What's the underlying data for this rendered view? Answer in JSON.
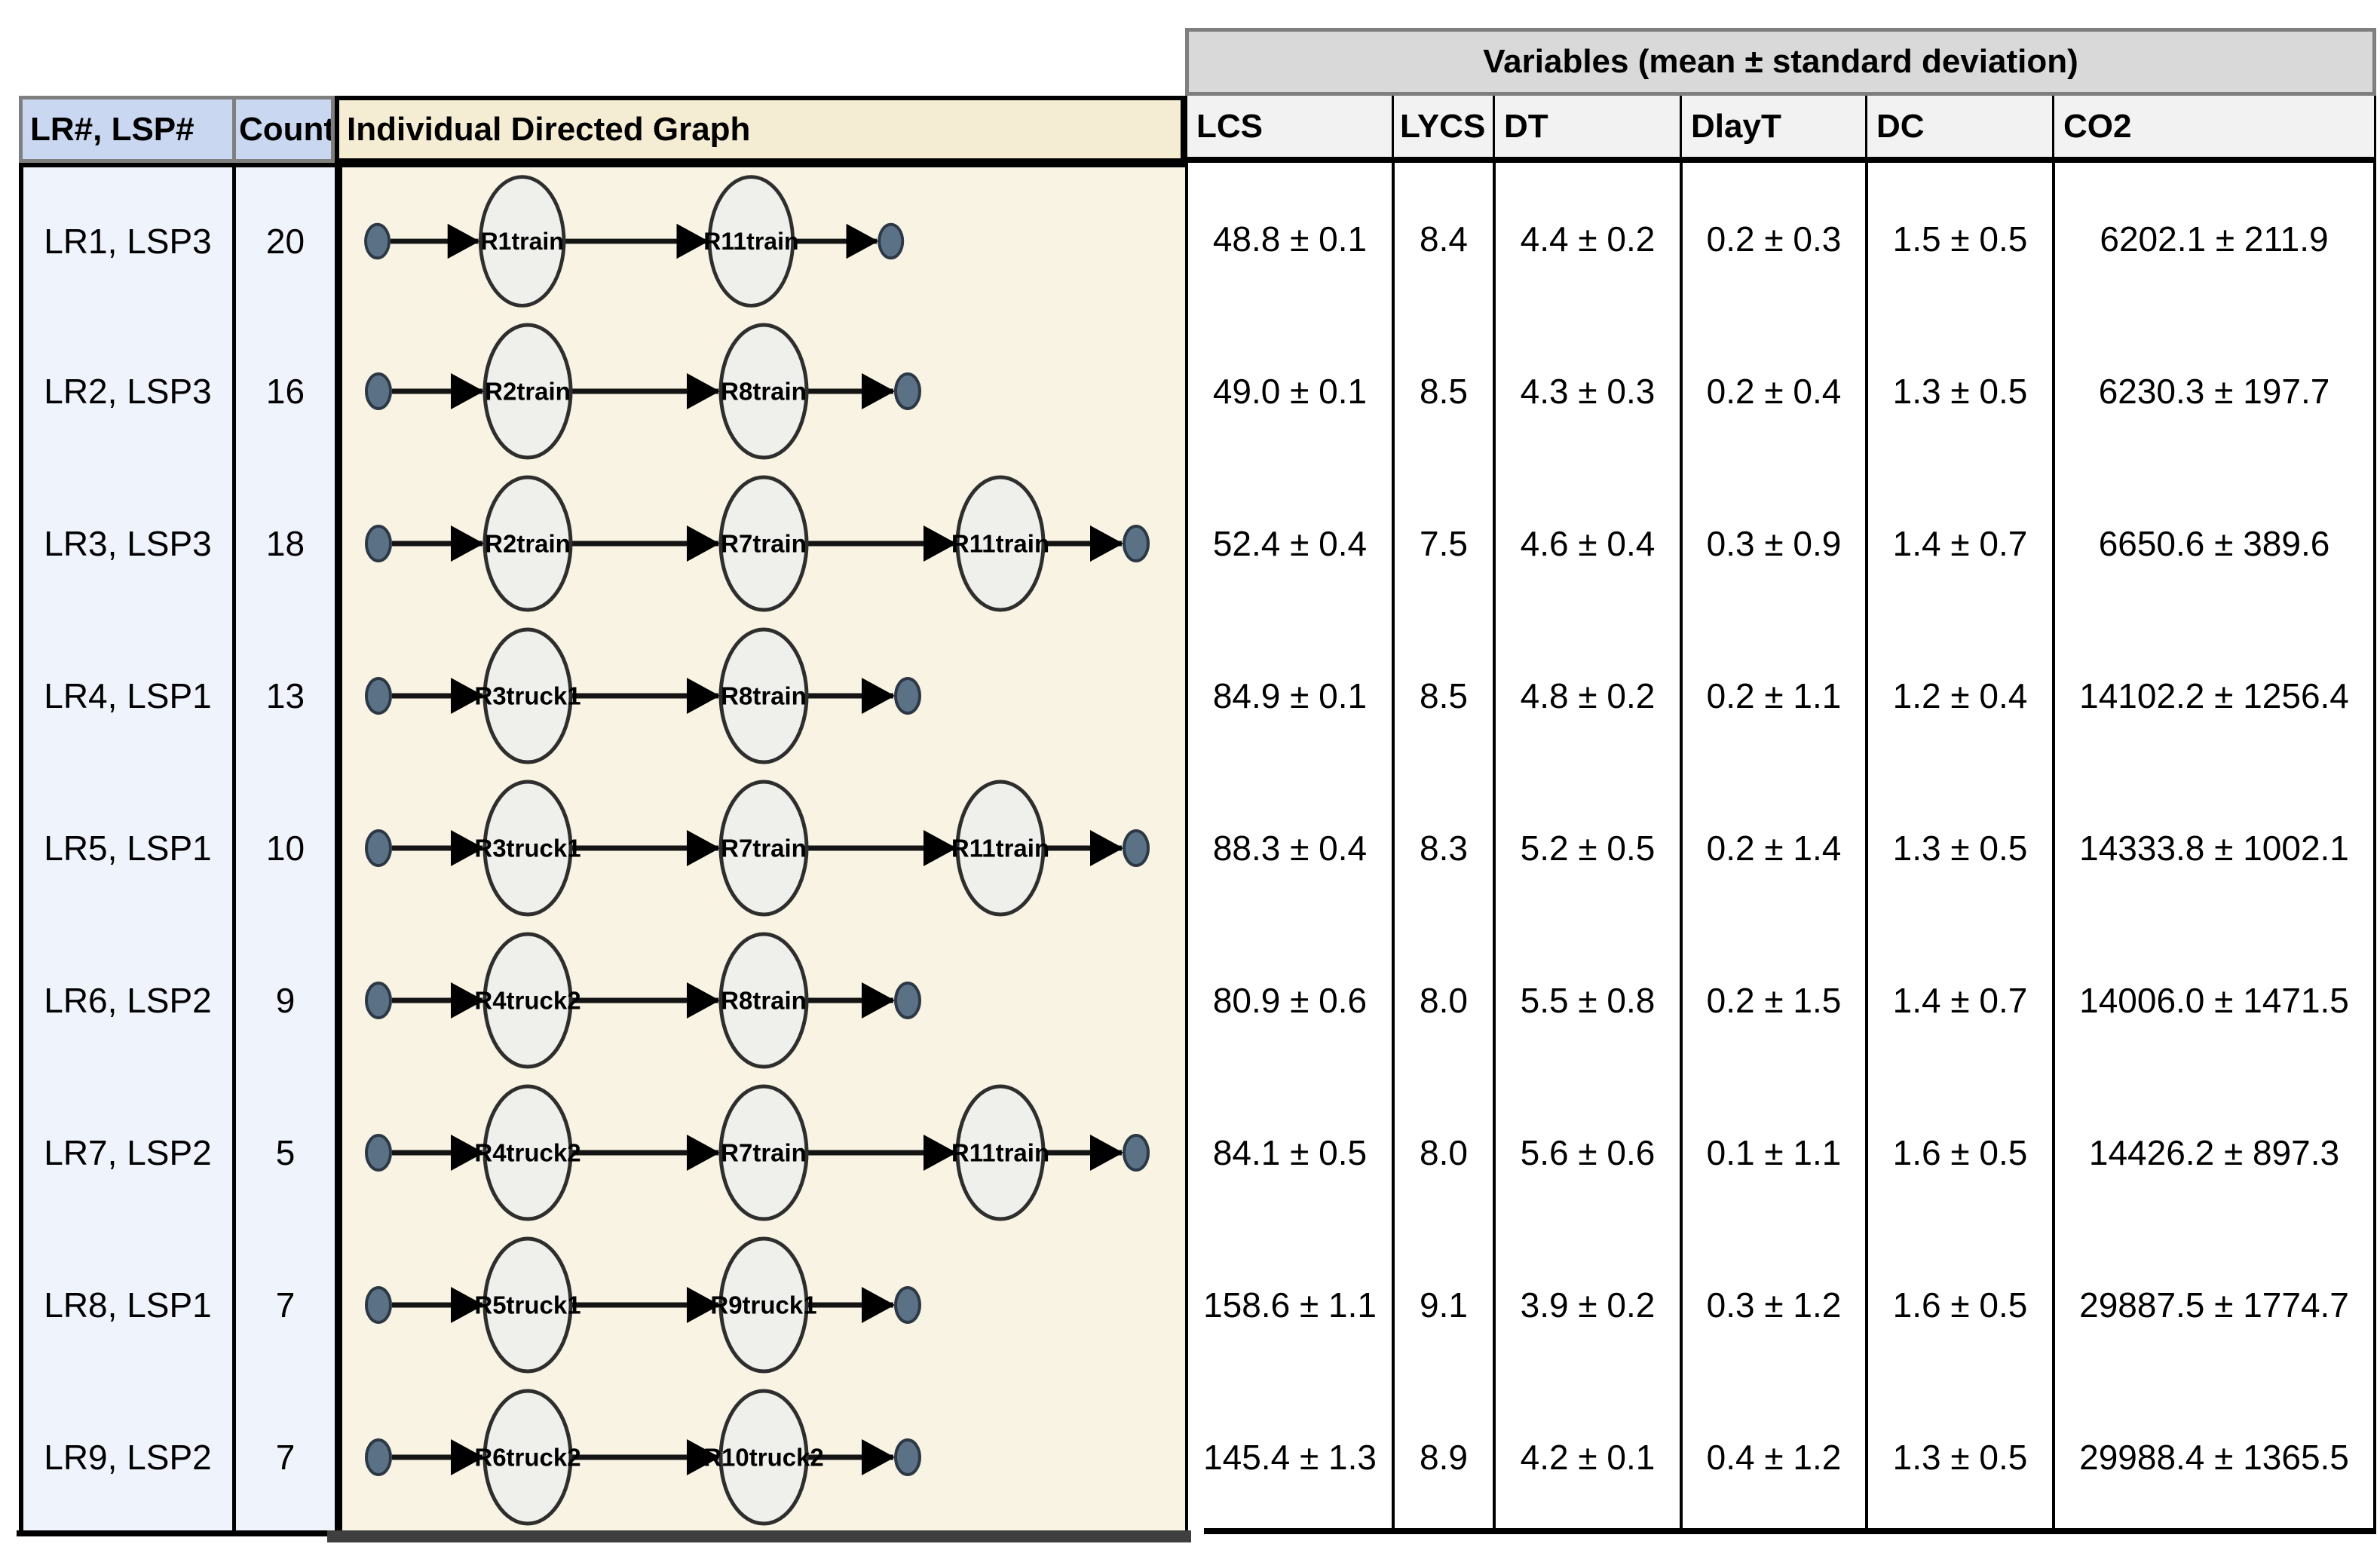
{
  "header": {
    "variables_label": "Variables (mean ± standard deviation)",
    "col_lr": "LR#, LSP#",
    "col_count": "Count",
    "col_graph": "Individual Directed Graph",
    "var_columns": [
      "LCS",
      "LYCS",
      "DT",
      "DlayT",
      "DC",
      "CO2"
    ]
  },
  "rows": [
    {
      "label": "LR1, LSP3",
      "count": "20",
      "nodes": [
        "R1train",
        "R11train"
      ],
      "lcs": "48.8 ± 0.1",
      "lycs": "8.4",
      "dt": "4.4 ± 0.2",
      "dlayt": "0.2 ± 0.3",
      "dc": "1.5 ± 0.5",
      "co2": "6202.1 ± 211.9"
    },
    {
      "label": "LR2, LSP3",
      "count": "16",
      "nodes": [
        "R2train",
        "R8train"
      ],
      "lcs": "49.0 ± 0.1",
      "lycs": "8.5",
      "dt": "4.3 ± 0.3",
      "dlayt": "0.2 ± 0.4",
      "dc": "1.3 ± 0.5",
      "co2": "6230.3 ± 197.7"
    },
    {
      "label": "LR3, LSP3",
      "count": "18",
      "nodes": [
        "R2train",
        "R7train",
        "R11train"
      ],
      "lcs": "52.4 ± 0.4",
      "lycs": "7.5",
      "dt": "4.6 ± 0.4",
      "dlayt": "0.3 ± 0.9",
      "dc": "1.4 ± 0.7",
      "co2": "6650.6 ± 389.6"
    },
    {
      "label": "LR4, LSP1",
      "count": "13",
      "nodes": [
        "R3truck1",
        "R8train"
      ],
      "lcs": "84.9 ± 0.1",
      "lycs": "8.5",
      "dt": "4.8 ± 0.2",
      "dlayt": "0.2 ± 1.1",
      "dc": "1.2 ± 0.4",
      "co2": "14102.2 ± 1256.4"
    },
    {
      "label": "LR5, LSP1",
      "count": "10",
      "nodes": [
        "R3truck1",
        "R7train",
        "R11train"
      ],
      "lcs": "88.3 ± 0.4",
      "lycs": "8.3",
      "dt": "5.2 ± 0.5",
      "dlayt": "0.2 ± 1.4",
      "dc": "1.3 ± 0.5",
      "co2": "14333.8 ± 1002.1"
    },
    {
      "label": "LR6, LSP2",
      "count": "9",
      "nodes": [
        "R4truck2",
        "R8train"
      ],
      "lcs": "80.9 ± 0.6",
      "lycs": "8.0",
      "dt": "5.5 ± 0.8",
      "dlayt": "0.2 ± 1.5",
      "dc": "1.4 ± 0.7",
      "co2": "14006.0 ± 1471.5"
    },
    {
      "label": "LR7, LSP2",
      "count": "5",
      "nodes": [
        "R4truck2",
        "R7train",
        "R11train"
      ],
      "lcs": "84.1 ± 0.5",
      "lycs": "8.0",
      "dt": "5.6 ± 0.6",
      "dlayt": "0.1 ± 1.1",
      "dc": "1.6 ± 0.5",
      "co2": "14426.2 ± 897.3"
    },
    {
      "label": "LR8, LSP1",
      "count": "7",
      "nodes": [
        "R5truck1",
        "R9truck1"
      ],
      "lcs": "158.6 ± 1.1",
      "lycs": "9.1",
      "dt": "3.9 ± 0.2",
      "dlayt": "0.3 ± 1.2",
      "dc": "1.6 ± 0.5",
      "co2": "29887.5 ± 1774.7"
    },
    {
      "label": "LR9, LSP2",
      "count": "7",
      "nodes": [
        "R6truck2",
        "R10truck2"
      ],
      "lcs": "145.4 ± 1.3",
      "lycs": "8.9",
      "dt": "4.2 ± 0.1",
      "dlayt": "0.4 ± 1.2",
      "dc": "1.3 ± 0.5",
      "co2": "29988.4 ± 1365.5"
    }
  ],
  "colors": {
    "header_blue_bg": "#c9d8f0",
    "body_blue_bg": "#eef3fc",
    "graph_header_bg": "#f5ecd4",
    "graph_body_bg": "#f8f3e2",
    "variables_header_bg": "#d9d9d9",
    "var_header_bg": "#f2f2f2",
    "node_fill": "#efefec",
    "node_stroke": "#2e2e2e",
    "endpoint_fill": "#5b7286",
    "endpoint_stroke": "#2c3845",
    "arrow_color": "#141414"
  }
}
